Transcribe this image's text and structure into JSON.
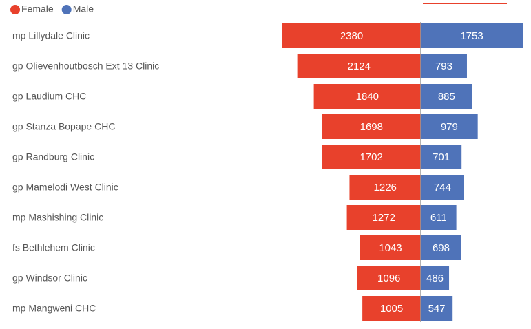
{
  "chart_data": {
    "type": "diverging-bar",
    "categories": [
      "mp Lillydale Clinic",
      "gp Olievenhoutbosch Ext 13 Clinic",
      "gp Laudium CHC",
      "gp Stanza Bopape CHC",
      "gp Randburg Clinic",
      "gp Mamelodi West Clinic",
      "mp Mashishing Clinic",
      "fs Bethlehem Clinic",
      "gp Windsor Clinic",
      "mp Mangweni CHC"
    ],
    "series": [
      {
        "name": "Female",
        "color": "#e8412c",
        "values": [
          2380,
          2124,
          1840,
          1698,
          1702,
          1226,
          1272,
          1043,
          1096,
          1005
        ]
      },
      {
        "name": "Male",
        "color": "#4f73b9",
        "values": [
          1753,
          793,
          885,
          979,
          701,
          744,
          611,
          698,
          486,
          547
        ]
      }
    ],
    "legend": "top-left"
  }
}
